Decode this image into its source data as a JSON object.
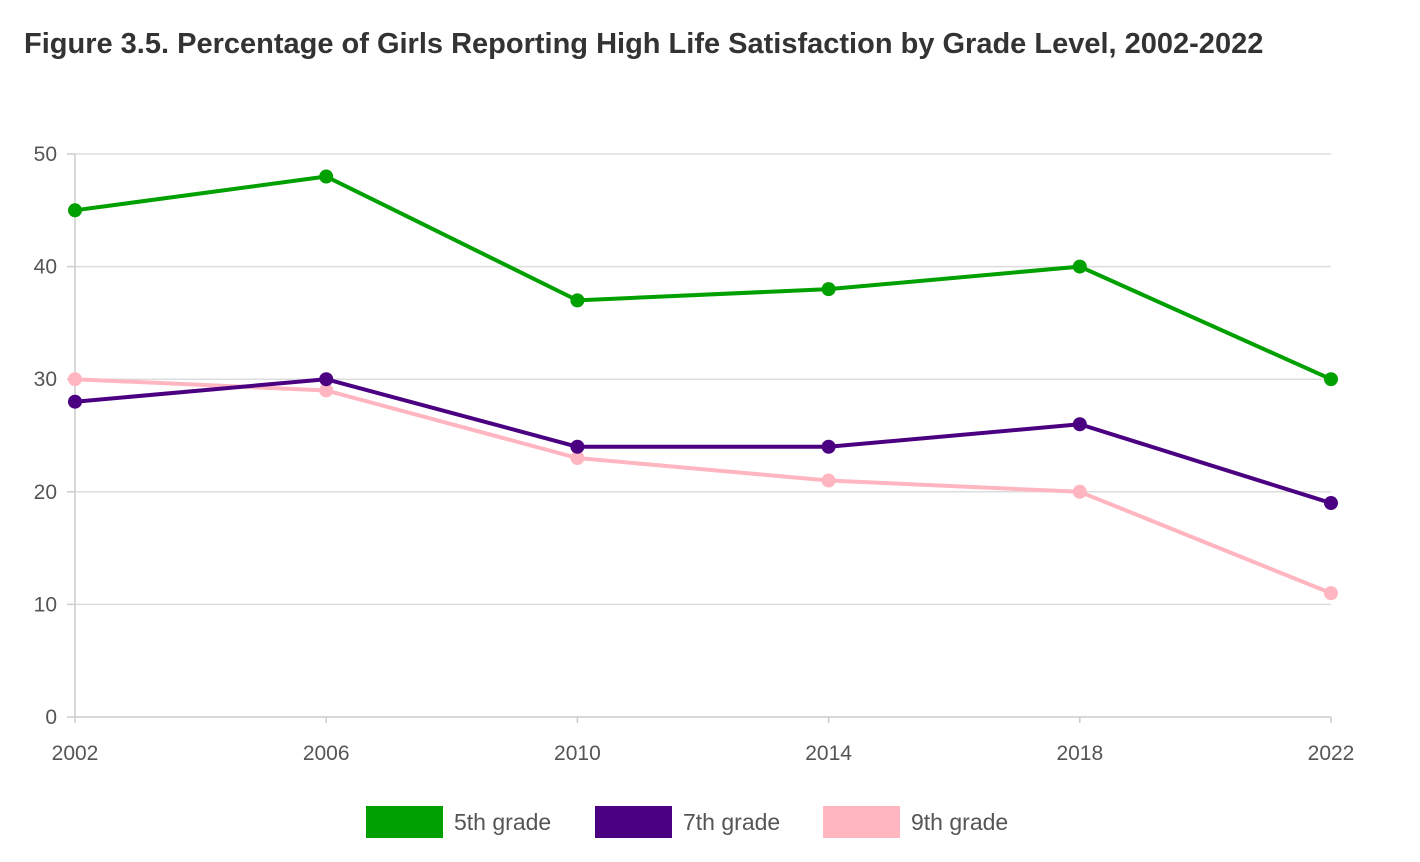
{
  "chart_data": {
    "type": "line",
    "title": "Figure 3.5. Percentage of Girls Reporting High Life Satisfaction by Grade Level, 2002-2022",
    "xlabel": "",
    "ylabel": "",
    "x": [
      "2002",
      "2006",
      "2010",
      "2014",
      "2018",
      "2022"
    ],
    "ylim": [
      0,
      50
    ],
    "yticks": [
      0,
      10,
      20,
      30,
      40,
      50
    ],
    "grid": true,
    "legend_position": "bottom",
    "series": [
      {
        "name": "5th grade",
        "color": "#00a000",
        "values": [
          45,
          48,
          37,
          38,
          40,
          30
        ]
      },
      {
        "name": "7th grade",
        "color": "#4b0082",
        "values": [
          28,
          30,
          24,
          24,
          26,
          19
        ]
      },
      {
        "name": "9th grade",
        "color": "#ffb6c1",
        "values": [
          30,
          29,
          23,
          21,
          20,
          11
        ]
      }
    ]
  }
}
